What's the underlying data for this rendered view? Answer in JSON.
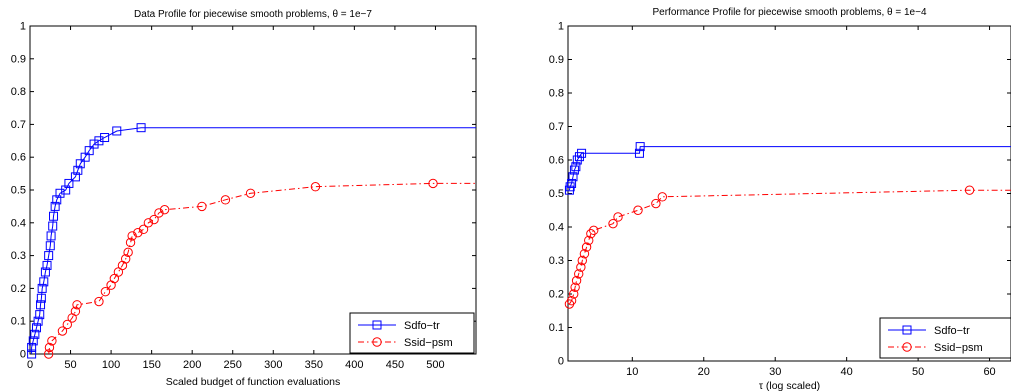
{
  "chart_data": [
    {
      "type": "line",
      "title": "Data Profile for piecewise smooth problems, θ = 1e−7",
      "xlabel": "Scaled budget of function evaluations",
      "ylabel": "",
      "xlim": [
        0,
        550
      ],
      "ylim": [
        0,
        1
      ],
      "xticks": [
        0,
        50,
        100,
        150,
        200,
        250,
        300,
        350,
        400,
        450,
        500
      ],
      "yticks": [
        0,
        0.1,
        0.2,
        0.3,
        0.4,
        0.5,
        0.6,
        0.7,
        0.8,
        0.9,
        1
      ],
      "grid": false,
      "legend_position": "bottom-right",
      "series": [
        {
          "name": "Sdfo−tr",
          "color": "#0000ff",
          "line_style": "solid",
          "marker": "square",
          "points": [
            [
              2,
              0
            ],
            [
              2,
              0.02
            ],
            [
              4,
              0.04
            ],
            [
              6,
              0.06
            ],
            [
              8,
              0.08
            ],
            [
              10,
              0.1
            ],
            [
              12,
              0.12
            ],
            [
              13,
              0.15
            ],
            [
              14,
              0.17
            ],
            [
              15,
              0.2
            ],
            [
              17,
              0.22
            ],
            [
              19,
              0.25
            ],
            [
              21,
              0.27
            ],
            [
              23,
              0.3
            ],
            [
              25,
              0.33
            ],
            [
              26,
              0.36
            ],
            [
              28,
              0.39
            ],
            [
              29,
              0.42
            ],
            [
              31,
              0.45
            ],
            [
              33,
              0.47
            ],
            [
              37,
              0.49
            ],
            [
              44,
              0.5
            ],
            [
              48,
              0.52
            ],
            [
              56,
              0.54
            ],
            [
              59,
              0.56
            ],
            [
              62,
              0.58
            ],
            [
              68,
              0.6
            ],
            [
              73,
              0.62
            ],
            [
              79,
              0.64
            ],
            [
              85,
              0.65
            ],
            [
              92,
              0.66
            ],
            [
              107,
              0.68
            ],
            [
              137,
              0.69
            ],
            [
              550,
              0.69
            ]
          ]
        },
        {
          "name": "Ssid−psm",
          "color": "#ff0000",
          "line_style": "dashdot",
          "marker": "circle",
          "points": [
            [
              23,
              0
            ],
            [
              24,
              0.02
            ],
            [
              27,
              0.04
            ],
            [
              40,
              0.07
            ],
            [
              46,
              0.09
            ],
            [
              52,
              0.11
            ],
            [
              56,
              0.13
            ],
            [
              58,
              0.15
            ],
            [
              85,
              0.16
            ],
            [
              93,
              0.19
            ],
            [
              100,
              0.21
            ],
            [
              104,
              0.23
            ],
            [
              109,
              0.25
            ],
            [
              114,
              0.27
            ],
            [
              118,
              0.29
            ],
            [
              121,
              0.31
            ],
            [
              124,
              0.34
            ],
            [
              126,
              0.36
            ],
            [
              133,
              0.37
            ],
            [
              140,
              0.38
            ],
            [
              146,
              0.4
            ],
            [
              153,
              0.41
            ],
            [
              159,
              0.43
            ],
            [
              166,
              0.44
            ],
            [
              212,
              0.45
            ],
            [
              241,
              0.47
            ],
            [
              272,
              0.49
            ],
            [
              352,
              0.51
            ],
            [
              497,
              0.52
            ],
            [
              550,
              0.52
            ]
          ]
        }
      ]
    },
    {
      "type": "line",
      "title": "Performance Profile for piecewise smooth problems, θ = 1e−4",
      "xlabel": "τ (log scaled)",
      "ylabel": "",
      "xlim": [
        1,
        63
      ],
      "ylim": [
        0,
        1
      ],
      "xticks": [
        10,
        20,
        30,
        40,
        50,
        60
      ],
      "yticks": [
        0,
        0.1,
        0.2,
        0.3,
        0.4,
        0.5,
        0.6,
        0.7,
        0.8,
        0.9,
        1
      ],
      "grid": false,
      "legend_position": "bottom-right",
      "series": [
        {
          "name": "Sdfo−tr",
          "color": "#0000ff",
          "line_style": "solid",
          "marker": "square",
          "points": [
            [
              1.2,
              0.51
            ],
            [
              1.3,
              0.52
            ],
            [
              1.5,
              0.53
            ],
            [
              1.7,
              0.55
            ],
            [
              1.9,
              0.57
            ],
            [
              2.1,
              0.58
            ],
            [
              2.3,
              0.6
            ],
            [
              2.6,
              0.61
            ],
            [
              2.9,
              0.62
            ],
            [
              11,
              0.62
            ],
            [
              11.1,
              0.64
            ],
            [
              63,
              0.64
            ]
          ]
        },
        {
          "name": "Ssid−psm",
          "color": "#ff0000",
          "line_style": "dashdot",
          "marker": "circle",
          "points": [
            [
              1.2,
              0.17
            ],
            [
              1.5,
              0.18
            ],
            [
              1.8,
              0.2
            ],
            [
              2.0,
              0.22
            ],
            [
              2.2,
              0.24
            ],
            [
              2.5,
              0.26
            ],
            [
              2.8,
              0.28
            ],
            [
              3.0,
              0.3
            ],
            [
              3.3,
              0.32
            ],
            [
              3.6,
              0.34
            ],
            [
              3.9,
              0.36
            ],
            [
              4.2,
              0.38
            ],
            [
              4.6,
              0.39
            ],
            [
              7.3,
              0.41
            ],
            [
              8.0,
              0.43
            ],
            [
              10.8,
              0.45
            ],
            [
              13.3,
              0.47
            ],
            [
              14.2,
              0.49
            ],
            [
              57.2,
              0.51
            ],
            [
              63,
              0.51
            ]
          ]
        }
      ]
    }
  ]
}
